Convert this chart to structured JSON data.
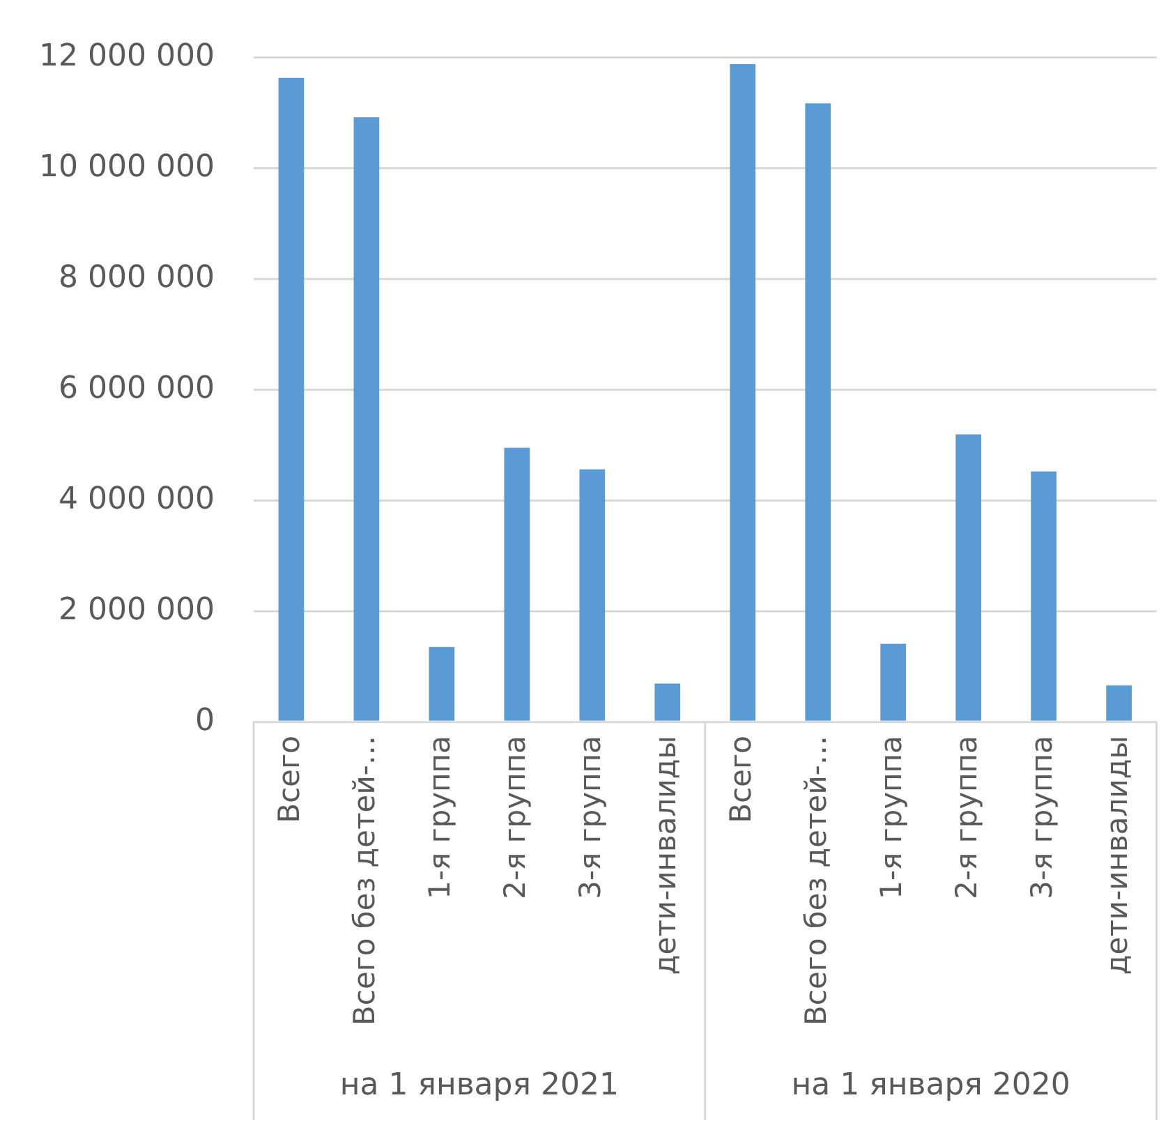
{
  "chart_data": {
    "type": "bar",
    "categories": [
      "Всего",
      "Всего без детей-…",
      "1-я группа",
      "2-я группа",
      "3-я группа",
      "дети-инвалиды",
      "Всего",
      "Всего без детей-…",
      "1-я группа",
      "2-я группа",
      "3-я группа",
      "дети-инвалиды"
    ],
    "values": [
      11630000,
      10920000,
      1350000,
      4950000,
      4560000,
      690000,
      11880000,
      11170000,
      1410000,
      5190000,
      4520000,
      660000
    ],
    "color": "#5b9bd5",
    "ylim": [
      0,
      12000000
    ],
    "yticks": [
      {
        "value": 0,
        "label": "0"
      },
      {
        "value": 2000000,
        "label": "2 000 000"
      },
      {
        "value": 4000000,
        "label": "4 000 000"
      },
      {
        "value": 6000000,
        "label": "6 000 000"
      },
      {
        "value": 8000000,
        "label": "8 000 000"
      },
      {
        "value": 10000000,
        "label": "10 000 000"
      },
      {
        "value": 12000000,
        "label": "12 000 000"
      }
    ],
    "annotations": [
      "на 1 января 2021",
      "на 1 января 2020"
    ],
    "grid": "y",
    "legend": false
  }
}
